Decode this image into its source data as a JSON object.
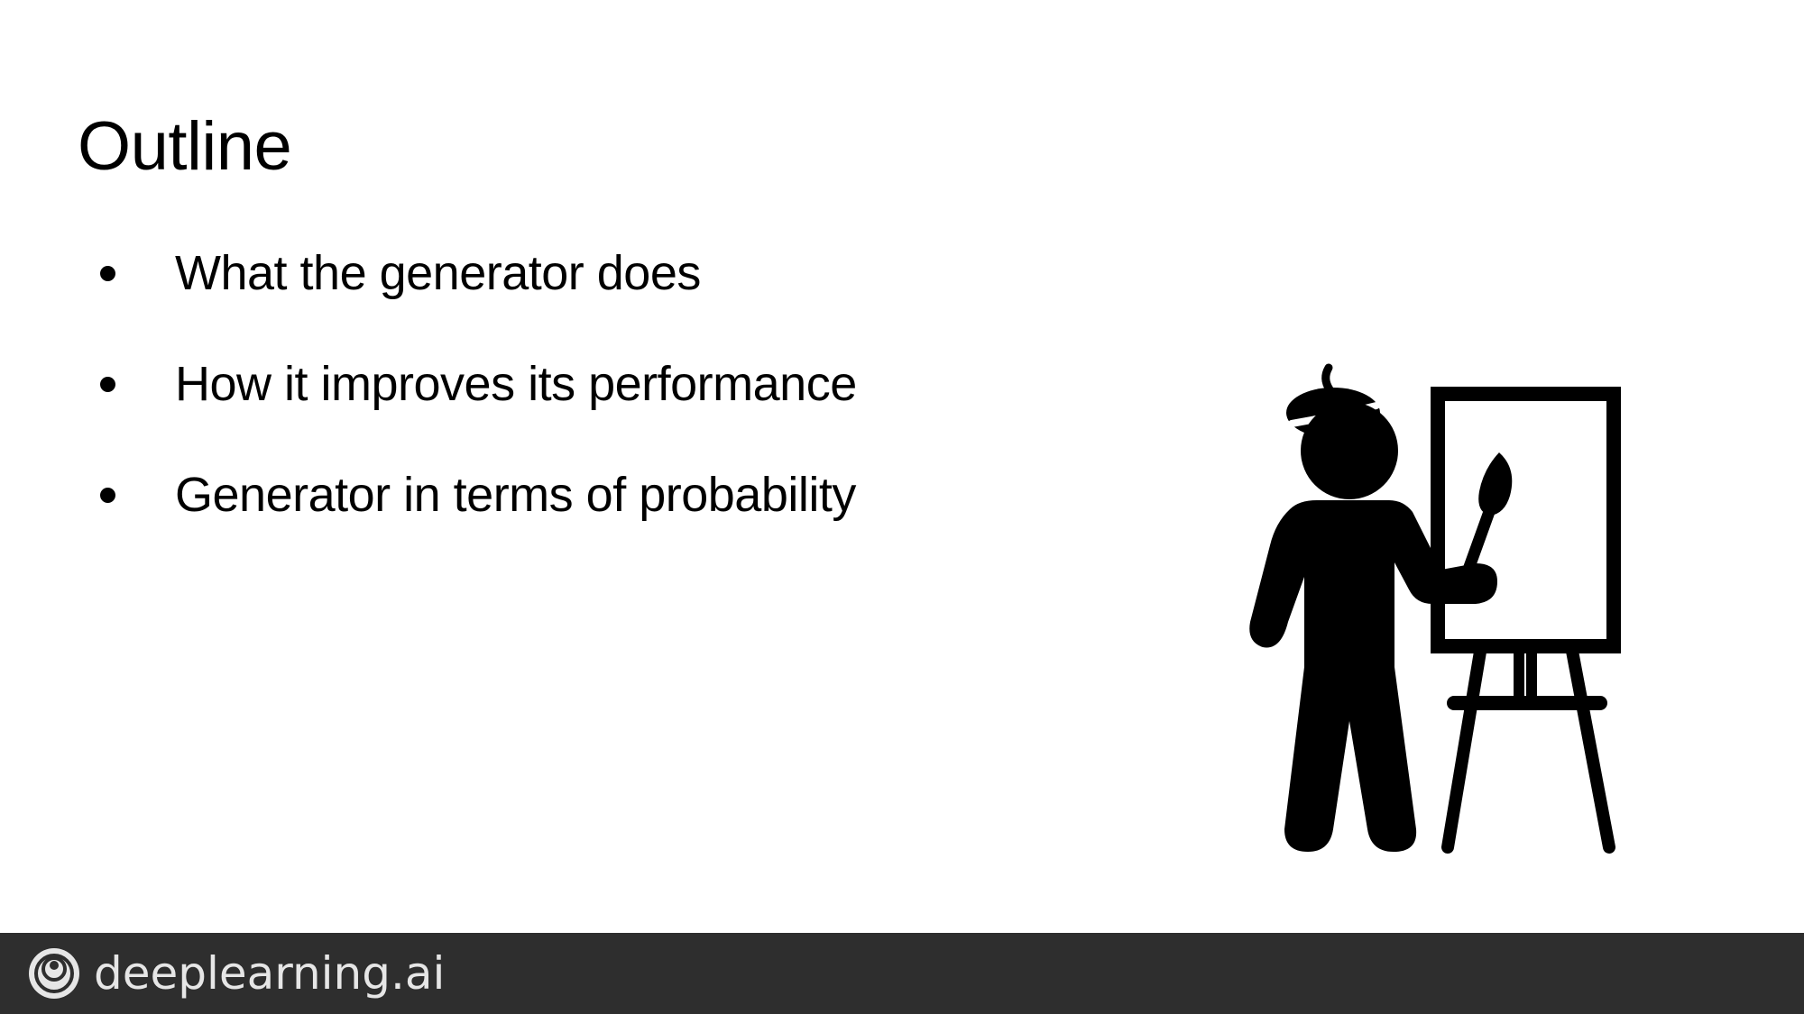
{
  "slide": {
    "title": "Outline",
    "bullets": [
      "What the generator does",
      "How it improves its performance",
      "Generator in terms of probability"
    ],
    "illustration_icon": "artist-painting-easel-icon"
  },
  "footer": {
    "brand_text": "deeplearning.ai",
    "logo_icon": "deeplearning-logo-icon",
    "background_color": "#2e2e2e"
  }
}
